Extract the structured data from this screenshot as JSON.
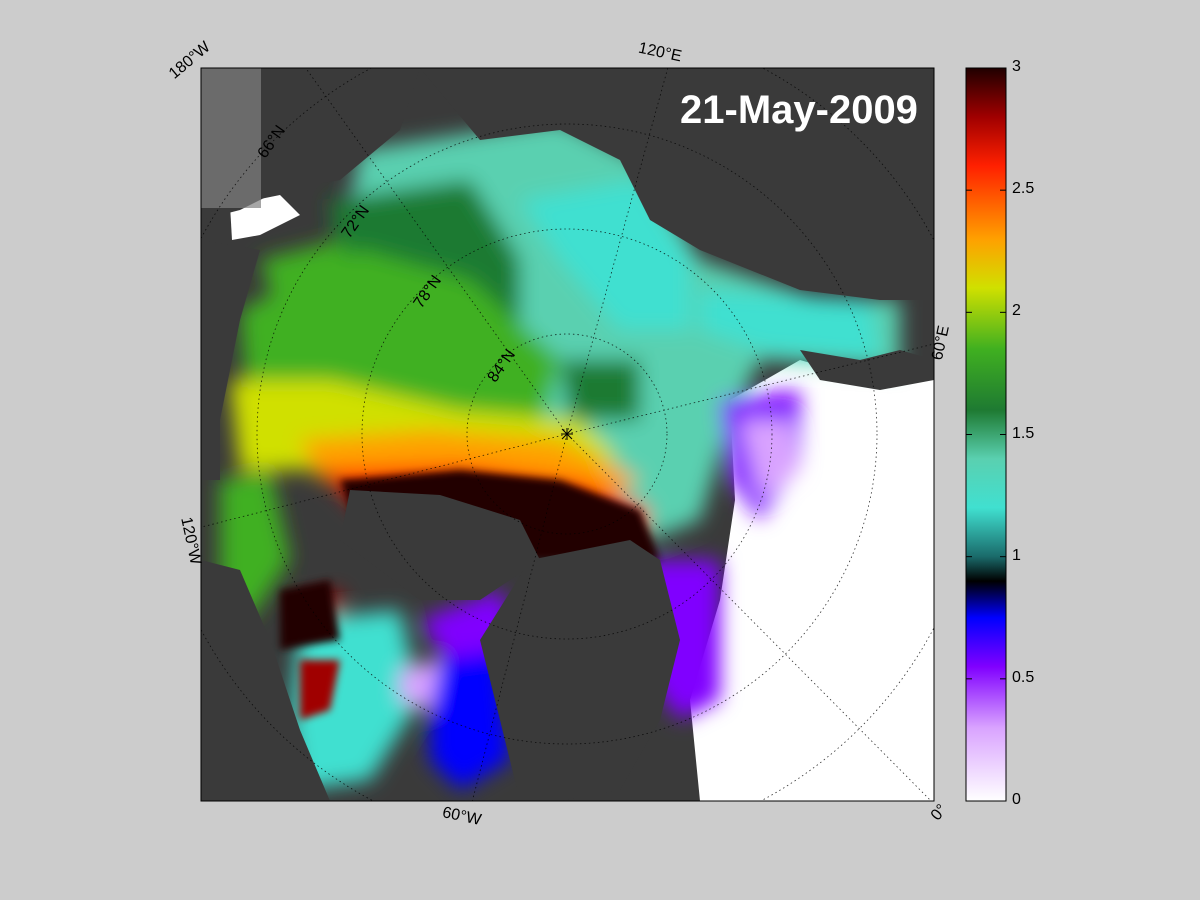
{
  "map": {
    "date": "21-May-2009",
    "longitude_labels": {
      "lon_180w": "180°W",
      "lon_120e": "120°E",
      "lon_60e": "60°E",
      "lon_120w": "120°W",
      "lon_60w": "60°W",
      "lon_0": "0°"
    },
    "latitude_labels": {
      "lat_66n": "66°N",
      "lat_72n": "72°N",
      "lat_78n": "78°N",
      "lat_84n": "84°N"
    },
    "colors": {
      "background": "#cccccc",
      "land": "#3a3a3a",
      "open_water": "#ffffff",
      "frame": "#000000"
    }
  },
  "colorbar": {
    "min": 0,
    "max": 3,
    "tick_labels": [
      "0",
      "0.5",
      "1",
      "1.5",
      "2",
      "2.5",
      "3"
    ],
    "gradient_stops": [
      {
        "value": 0.0,
        "color": "#ffffff"
      },
      {
        "value": 0.3,
        "color": "#d9a3ff"
      },
      {
        "value": 0.55,
        "color": "#8000ff"
      },
      {
        "value": 0.75,
        "color": "#0000ff"
      },
      {
        "value": 0.9,
        "color": "#000000"
      },
      {
        "value": 1.0,
        "color": "#1a6a6a"
      },
      {
        "value": 1.2,
        "color": "#40e0d0"
      },
      {
        "value": 1.4,
        "color": "#5ad0b0"
      },
      {
        "value": 1.6,
        "color": "#1e7a32"
      },
      {
        "value": 1.85,
        "color": "#40b020"
      },
      {
        "value": 2.1,
        "color": "#d0e000"
      },
      {
        "value": 2.3,
        "color": "#ffa000"
      },
      {
        "value": 2.6,
        "color": "#ff2000"
      },
      {
        "value": 2.8,
        "color": "#a00000"
      },
      {
        "value": 3.0,
        "color": "#200000"
      }
    ]
  }
}
